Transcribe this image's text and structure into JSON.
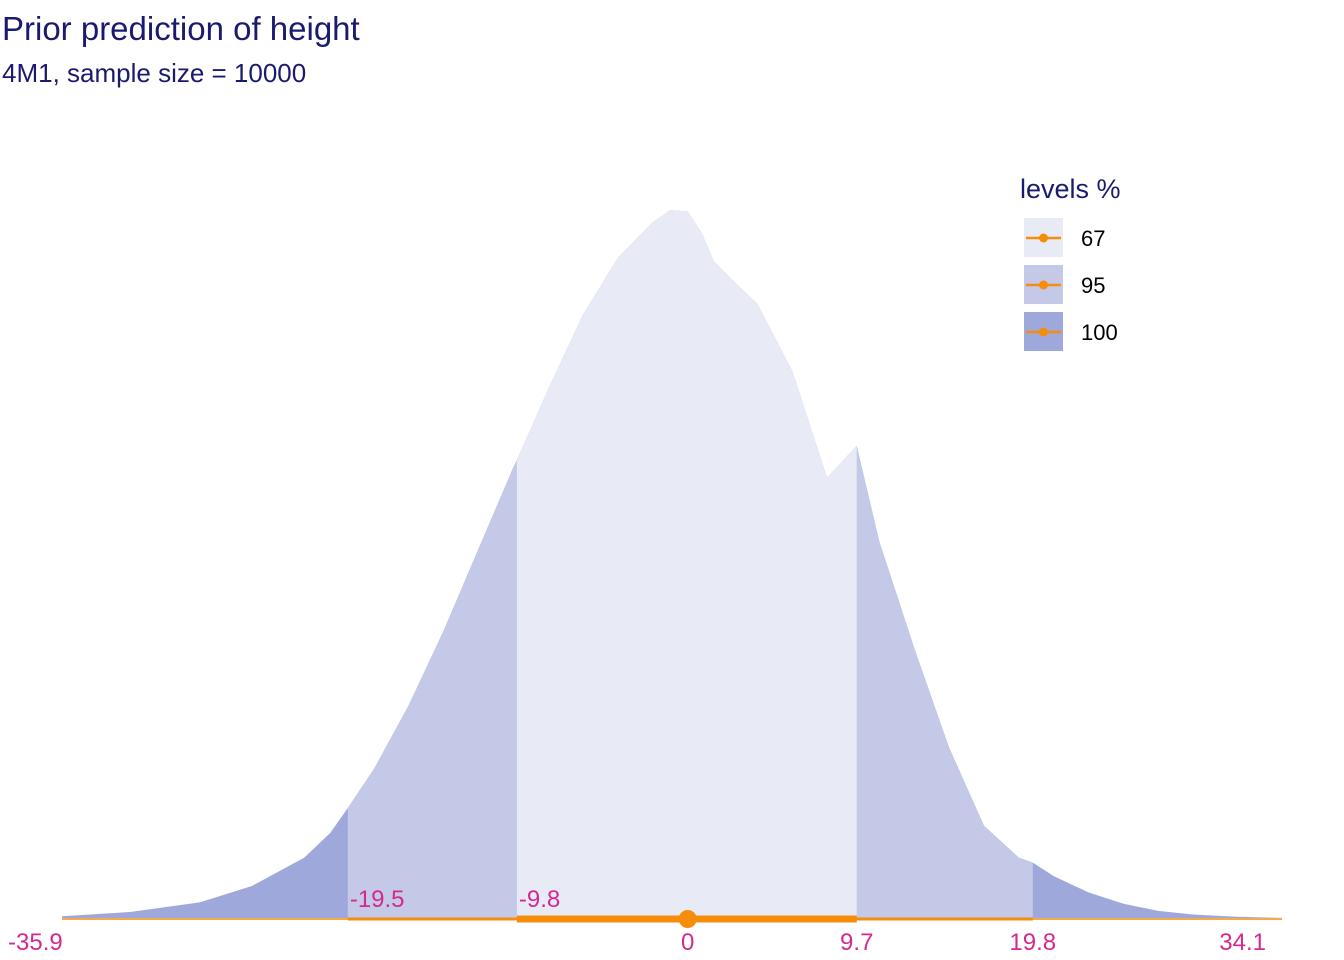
{
  "chart_data": {
    "type": "area",
    "title": "Prior prediction of height",
    "subtitle": "4M1, sample size = 10000",
    "xlim": [
      -35.9,
      34.1
    ],
    "median": 0,
    "x_ticks": [
      {
        "value": -35.9,
        "label": "-35.9"
      },
      {
        "value": 0,
        "label": "0"
      },
      {
        "value": 9.7,
        "label": "9.7"
      },
      {
        "value": 19.8,
        "label": "19.8"
      },
      {
        "value": 34.1,
        "label": "34.1"
      }
    ],
    "interval_labels": [
      {
        "value": -19.5,
        "label": "-19.5"
      },
      {
        "value": -9.8,
        "label": "-9.8"
      }
    ],
    "levels": [
      {
        "level": "67",
        "lower": -9.8,
        "upper": 9.7,
        "color": "#e8eaf6"
      },
      {
        "level": "95",
        "lower": -19.5,
        "upper": 19.8,
        "color": "#c5c9e8"
      },
      {
        "level": "100",
        "lower": -35.9,
        "upper": 34.1,
        "color": "#9fa8da"
      }
    ],
    "density": {
      "x": [
        -35.9,
        -32,
        -28,
        -25,
        -22,
        -20.5,
        -19.5,
        -18,
        -16,
        -14,
        -12,
        -10,
        -9.8,
        -8,
        -6,
        -4,
        -2,
        -1,
        0,
        0.8,
        1.5,
        2.5,
        4,
        6,
        8,
        9.7,
        11,
        13,
        15,
        17,
        19,
        19.8,
        21,
        23,
        25,
        27,
        29,
        31.5,
        34.1
      ],
      "y": [
        0.0025,
        0.0085,
        0.022,
        0.045,
        0.085,
        0.12,
        0.155,
        0.21,
        0.3,
        0.405,
        0.52,
        0.635,
        0.645,
        0.745,
        0.85,
        0.93,
        0.98,
        0.997,
        0.995,
        0.965,
        0.925,
        0.9,
        0.865,
        0.77,
        0.62,
        0.665,
        0.53,
        0.38,
        0.24,
        0.13,
        0.085,
        0.078,
        0.059,
        0.036,
        0.02,
        0.01,
        0.005,
        0.0018,
        0.0002
      ]
    },
    "legend": {
      "title": "levels %",
      "position": "top-right",
      "interval_color": "#f58c0a"
    },
    "tick_color": "#d42a8f",
    "grid": false
  }
}
